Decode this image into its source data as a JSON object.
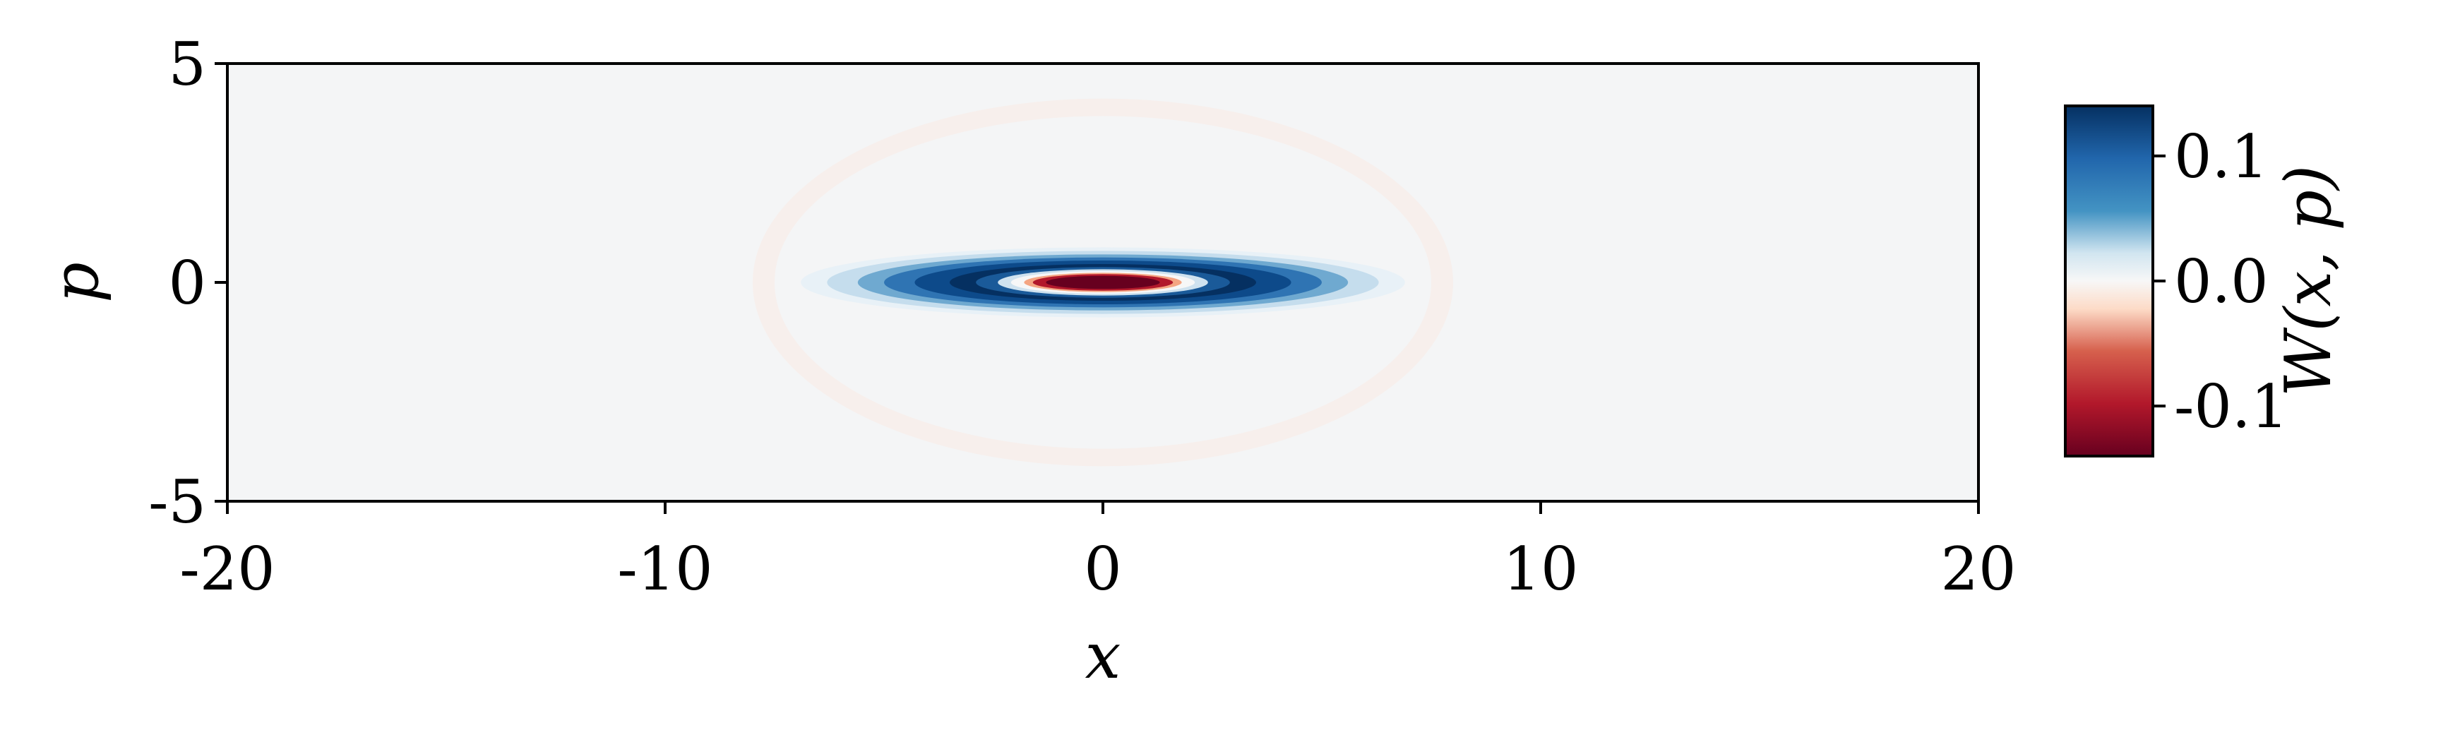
{
  "chart_data": {
    "type": "heatmap",
    "title": "",
    "xlabel": "x",
    "ylabel": "p",
    "xlim": [
      -20,
      20
    ],
    "ylim": [
      -5,
      5
    ],
    "x_ticks": [
      -20,
      -10,
      0,
      10,
      20
    ],
    "y_ticks": [
      -5,
      0,
      5
    ],
    "x_tick_labels": [
      "-20",
      "-10",
      "0",
      "10",
      "20"
    ],
    "y_tick_labels": [
      "-5",
      "0",
      "5"
    ],
    "colormap": "RdBu",
    "colorbar": {
      "label": "W(x, p)",
      "range": [
        -0.14,
        0.14
      ],
      "ticks": [
        0.1,
        0.0,
        -0.1
      ],
      "tick_labels": [
        "0.1",
        "0.0",
        "-0.1"
      ]
    },
    "field": {
      "description_free": true,
      "center": [
        0,
        0
      ],
      "negative_core_min": -0.14,
      "positive_ring_max": 0.14,
      "x_extent": 7,
      "p_extent": 0.8
    },
    "colors": {
      "negative": "#67001f",
      "neutral": "#f4f5f6",
      "positive": "#053061"
    }
  }
}
